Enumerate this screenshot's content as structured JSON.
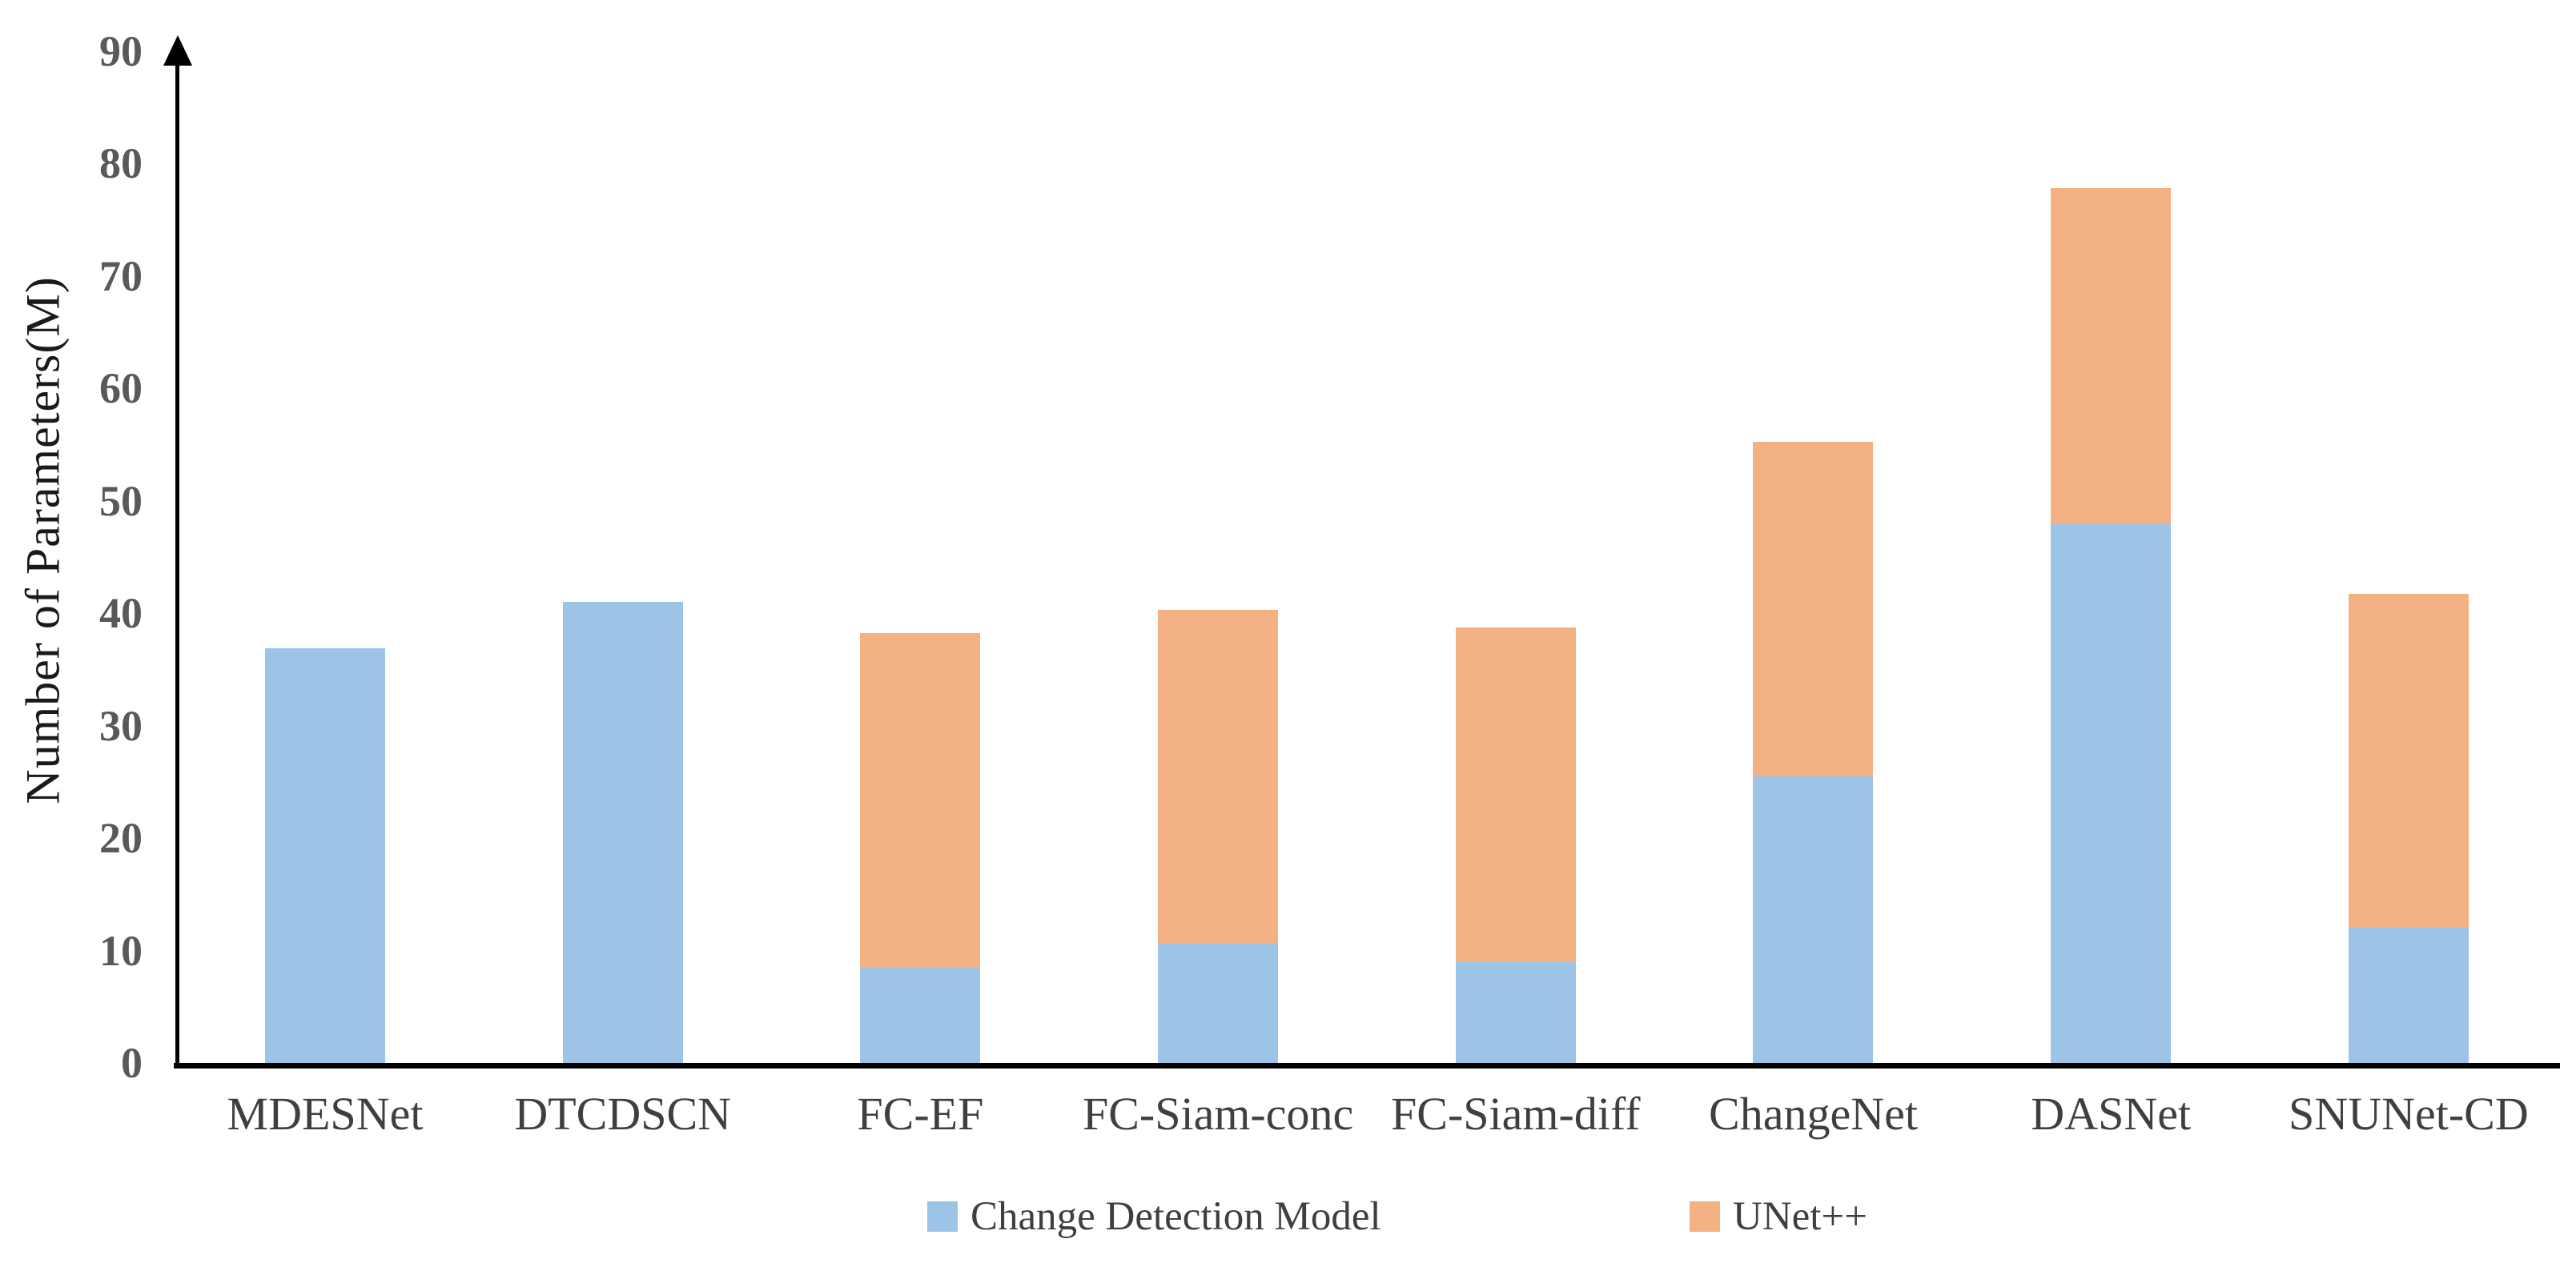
{
  "figure": {
    "background_color": "#ffffff",
    "axis_color": "#000000",
    "tick_label_color": "#595959",
    "category_label_color": "#3f3f3f"
  },
  "chart_data": {
    "type": "bar",
    "stacked": true,
    "title": "",
    "xlabel": "",
    "ylabel": "Number of Parameters(M)",
    "ylim": [
      0,
      90
    ],
    "ytick_step": 10,
    "yticks": [
      0,
      10,
      20,
      30,
      40,
      50,
      60,
      70,
      80,
      90
    ],
    "grid": false,
    "legend_position": "bottom",
    "categories": [
      "MDESNet",
      "DTCDSCN",
      "FC-EF",
      "FC-Siam-conc",
      "FC-Siam-diff",
      "ChangeNet",
      "DASNet",
      "SNUNet-CD"
    ],
    "series": [
      {
        "name": "Change Detection Model",
        "color": "#9DC3E6",
        "values": [
          36.9,
          41.0,
          8.5,
          10.6,
          9.0,
          25.5,
          48.0,
          12.0
        ]
      },
      {
        "name": "UNet++",
        "color": "#F4B183",
        "values": [
          0,
          0,
          29.7,
          29.7,
          29.7,
          29.7,
          29.8,
          29.7
        ]
      }
    ],
    "stack_totals": [
      36.9,
      41.0,
      38.2,
      40.3,
      38.7,
      55.2,
      77.8,
      41.7
    ]
  },
  "legend": {
    "items": [
      {
        "label": "Change Detection Model",
        "color": "#9DC3E6"
      },
      {
        "label": "UNet++",
        "color": "#F4B183"
      }
    ]
  }
}
